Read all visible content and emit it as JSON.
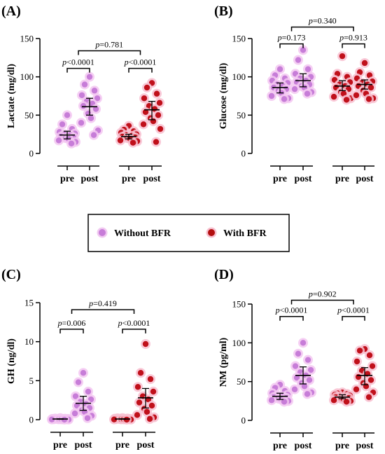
{
  "legend": {
    "items": [
      {
        "label": "Without BFR",
        "fill": "#c77dd8",
        "halo": "#f1c9f1"
      },
      {
        "label": "With BFR",
        "fill": "#b30f0f",
        "halo": "#f7bfcf"
      }
    ]
  },
  "colors": {
    "without_bfr": "#c77dd8",
    "with_bfr": "#c0101a",
    "halo_without": "#f3c7f1",
    "halo_with": "#f8bfd0",
    "axis": "#000000"
  },
  "chart_data": [
    {
      "id": "A",
      "panel_label": "(A)",
      "type": "scatter",
      "ylabel": "Lactate (mg/dl)",
      "ylim": [
        0,
        150
      ],
      "yticks": [
        0,
        50,
        100,
        150
      ],
      "categories": [
        "pre",
        "post",
        "pre",
        "post"
      ],
      "series": [
        {
          "name": "Without BFR",
          "group": "Without BFR",
          "category": "pre",
          "points": [
            50,
            38,
            32,
            28,
            26,
            25,
            24,
            22,
            21,
            20,
            19,
            17,
            15,
            13
          ],
          "mean": 24,
          "ci": [
            19,
            29
          ]
        },
        {
          "name": "Without BFR",
          "group": "Without BFR",
          "category": "post",
          "points": [
            100,
            90,
            82,
            76,
            72,
            68,
            65,
            62,
            58,
            52,
            46,
            40,
            30,
            24
          ],
          "mean": 61,
          "ci": [
            50,
            72
          ]
        },
        {
          "name": "With BFR",
          "group": "With BFR",
          "category": "pre",
          "points": [
            36,
            31,
            29,
            27,
            25,
            24,
            23,
            22,
            21,
            20,
            19,
            17,
            16,
            14
          ],
          "mean": 22,
          "ci": [
            19,
            25
          ]
        },
        {
          "name": "With BFR",
          "group": "With BFR",
          "category": "post",
          "points": [
            92,
            86,
            78,
            72,
            66,
            62,
            58,
            54,
            50,
            46,
            42,
            38,
            32,
            15
          ],
          "mean": 57,
          "ci": [
            44,
            68
          ]
        }
      ],
      "comparisons": [
        {
          "from": 0,
          "to": 1,
          "y": 111,
          "label_em": "p",
          "label": "<0.0001"
        },
        {
          "from": 2,
          "to": 3,
          "y": 111,
          "label_em": "p",
          "label": "<0.0001"
        },
        {
          "from": 0.5,
          "to": 2.5,
          "y": 134,
          "label_em": "p",
          "label": "=0.781"
        }
      ]
    },
    {
      "id": "B",
      "panel_label": "(B)",
      "type": "scatter",
      "ylabel": "Glucose (mg/dl)",
      "ylim": [
        0,
        150
      ],
      "yticks": [
        0,
        50,
        100,
        150
      ],
      "categories": [
        "pre",
        "post",
        "pre",
        "post"
      ],
      "series": [
        {
          "name": "Without BFR",
          "group": "Without BFR",
          "category": "pre",
          "points": [
            110,
            102,
            98,
            95,
            92,
            90,
            88,
            86,
            84,
            82,
            79,
            75,
            72,
            71
          ],
          "mean": 86,
          "ci": [
            79,
            92
          ]
        },
        {
          "name": "Without BFR",
          "group": "Without BFR",
          "category": "post",
          "points": [
            135,
            122,
            110,
            104,
            100,
            98,
            95,
            93,
            90,
            88,
            86,
            84,
            80,
            78
          ],
          "mean": 95,
          "ci": [
            87,
            104
          ]
        },
        {
          "name": "With BFR",
          "group": "With BFR",
          "category": "pre",
          "points": [
            127,
            104,
            100,
            96,
            93,
            90,
            88,
            86,
            84,
            80,
            78,
            74,
            72,
            70
          ],
          "mean": 88,
          "ci": [
            82,
            95
          ]
        },
        {
          "name": "With BFR",
          "group": "With BFR",
          "category": "post",
          "points": [
            118,
            106,
            102,
            98,
            94,
            92,
            90,
            88,
            86,
            82,
            78,
            76,
            72,
            71
          ],
          "mean": 90,
          "ci": [
            84,
            96
          ]
        }
      ],
      "comparisons": [
        {
          "from": 0,
          "to": 1,
          "y": 143,
          "label_em": "p",
          "label": "=0.173"
        },
        {
          "from": 2,
          "to": 3,
          "y": 143,
          "label_em": "p",
          "label": "=0.913"
        },
        {
          "from": 0.5,
          "to": 2.5,
          "y": 165,
          "label_em": "p",
          "label": "=0.340"
        }
      ]
    },
    {
      "id": "C",
      "panel_label": "(C)",
      "type": "scatter",
      "ylabel": "GH (ng/dl)",
      "ylim": [
        0,
        15
      ],
      "yticks": [
        0,
        5,
        10,
        15
      ],
      "categories": [
        "pre",
        "post",
        "pre",
        "post"
      ],
      "series": [
        {
          "name": "Without BFR",
          "group": "Without BFR",
          "category": "pre",
          "points": [
            0.2,
            0.15,
            0.12,
            0.1,
            0.1,
            0.08,
            0.08,
            0.06,
            0.05,
            0.05,
            0.04,
            0.03,
            0.02,
            0.01
          ],
          "mean": 0.08,
          "ci": [
            0.05,
            0.11
          ]
        },
        {
          "name": "Without BFR",
          "group": "Without BFR",
          "category": "post",
          "points": [
            6.0,
            4.8,
            3.6,
            3.0,
            2.6,
            2.3,
            2.0,
            1.8,
            1.5,
            1.2,
            1.0,
            0.8,
            0.5,
            0.2
          ],
          "mean": 2.1,
          "ci": [
            1.2,
            3.0
          ]
        },
        {
          "name": "With BFR",
          "group": "With BFR",
          "category": "pre",
          "points": [
            0.2,
            0.18,
            0.15,
            0.12,
            0.1,
            0.1,
            0.08,
            0.07,
            0.06,
            0.05,
            0.04,
            0.03,
            0.02,
            0.01
          ],
          "mean": 0.08,
          "ci": [
            0.05,
            0.11
          ]
        },
        {
          "name": "With BFR",
          "group": "With BFR",
          "category": "post",
          "points": [
            9.7,
            6.0,
            5.2,
            4.2,
            3.6,
            3.0,
            2.6,
            2.2,
            1.8,
            1.4,
            1.0,
            0.6,
            0.3,
            0.1
          ],
          "mean": 2.8,
          "ci": [
            1.5,
            4.0
          ]
        }
      ],
      "comparisons": [
        {
          "from": 0,
          "to": 1,
          "y": 11.6,
          "label_em": "p",
          "label": "=0.006"
        },
        {
          "from": 2,
          "to": 3,
          "y": 11.6,
          "label_em": "p",
          "label": "<0.0001"
        },
        {
          "from": 0.5,
          "to": 2.5,
          "y": 14.1,
          "label_em": "p",
          "label": "=0.419"
        }
      ]
    },
    {
      "id": "D",
      "panel_label": "(D)",
      "type": "scatter",
      "ylabel": "NM  (pg/ml)",
      "ylim": [
        0,
        150
      ],
      "yticks": [
        0,
        50,
        100,
        150
      ],
      "categories": [
        "pre",
        "post",
        "pre",
        "post"
      ],
      "series": [
        {
          "name": "Without BFR",
          "group": "Without BFR",
          "category": "pre",
          "points": [
            46,
            42,
            38,
            35,
            33,
            32,
            31,
            30,
            29,
            28,
            27,
            26,
            25,
            24
          ],
          "mean": 31,
          "ci": [
            27,
            35
          ]
        },
        {
          "name": "Without BFR",
          "group": "Without BFR",
          "category": "post",
          "points": [
            100,
            86,
            78,
            70,
            65,
            62,
            58,
            55,
            52,
            48,
            44,
            40,
            36,
            34
          ],
          "mean": 58,
          "ci": [
            47,
            69
          ]
        },
        {
          "name": "With BFR",
          "group": "With BFR",
          "category": "pre",
          "points": [
            36,
            35,
            34,
            33,
            32,
            31,
            30,
            30,
            29,
            28,
            27,
            26,
            25,
            24
          ],
          "mean": 30,
          "ci": [
            28,
            33
          ]
        },
        {
          "name": "With BFR",
          "group": "With BFR",
          "category": "post",
          "points": [
            92,
            90,
            84,
            76,
            70,
            64,
            60,
            56,
            52,
            48,
            44,
            40,
            36,
            30
          ],
          "mean": 58,
          "ci": [
            46,
            68
          ]
        }
      ],
      "comparisons": [
        {
          "from": 0,
          "to": 1,
          "y": 134,
          "label_em": "p",
          "label": "<0.0001"
        },
        {
          "from": 2,
          "to": 3,
          "y": 134,
          "label_em": "p",
          "label": "<0.0001"
        },
        {
          "from": 0.5,
          "to": 2.5,
          "y": 155,
          "label_em": "p",
          "label": "=0.902"
        }
      ]
    }
  ]
}
